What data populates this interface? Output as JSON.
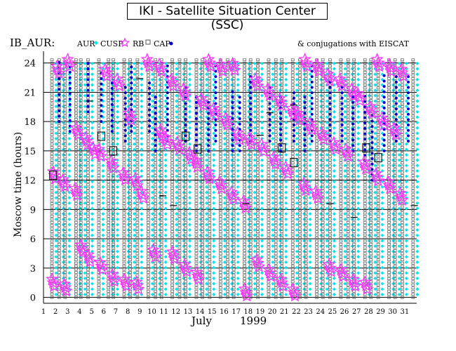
{
  "title": "IKI - Satellite Situation Center (SSC)",
  "chart_data": {
    "type": "scatter",
    "panel_label": "IB_AUR:",
    "legend": [
      {
        "label": "AUR",
        "marker": "diamond",
        "color": "#00e5ee"
      },
      {
        "label": "CUSP",
        "marker": "star",
        "color": "#ff33ff"
      },
      {
        "label": "RB",
        "marker": "square",
        "color": "#555555"
      },
      {
        "label": "CAP",
        "marker": "dot",
        "color": "#0000cc"
      }
    ],
    "conjugation_note": "& conjugations with EISCAT",
    "ylabel": "Moscow time (hours)",
    "xlabel": "July",
    "xlabel_year": "1999",
    "ylim": [
      -0.6,
      25.2
    ],
    "xlim": [
      1,
      32
    ],
    "y_ticks": [
      "0",
      "3",
      "6",
      "9",
      "12",
      "15",
      "18",
      "21",
      "24"
    ],
    "x_ticks": [
      "1",
      "2",
      "3",
      "4",
      "5",
      "6",
      "7",
      "8",
      "9",
      "10",
      "11",
      "12",
      "13",
      "14",
      "15",
      "16",
      "17",
      "18",
      "19",
      "20",
      "21",
      "22",
      "23",
      "24",
      "25",
      "26",
      "27",
      "28",
      "29",
      "30",
      "31"
    ],
    "grid": "horizontal lines at y tick values",
    "orbit_columns": [
      1.7,
      2.3,
      2.8,
      3.7,
      4.1,
      4.7,
      5.6,
      6.4,
      6.8,
      7.7,
      8.2,
      8.8,
      9.7,
      10.3,
      10.8,
      11.7,
      12.3,
      12.8,
      13.7,
      14.2,
      14.8,
      15.7,
      16.3,
      16.8,
      17.7,
      18.2,
      18.8,
      19.7,
      20.3,
      20.8,
      21.7,
      22.3,
      22.8,
      23.7,
      24.2,
      24.8,
      25.7,
      26.3,
      26.8,
      27.7,
      28.2,
      28.8,
      29.7,
      30.2,
      30.8,
      31.7
    ],
    "cusp_passes": [
      {
        "day": 1.8,
        "hour": 1.5
      },
      {
        "day": 1.9,
        "hour": 12.5
      },
      {
        "day": 2.2,
        "hour": 23.3
      },
      {
        "day": 2.7,
        "hour": 11.7
      },
      {
        "day": 2.8,
        "hour": 1.0
      },
      {
        "day": 3.1,
        "hour": 24.0
      },
      {
        "day": 3.7,
        "hour": 10.8
      },
      {
        "day": 3.8,
        "hour": 17.0
      },
      {
        "day": 4.2,
        "hour": 5.0
      },
      {
        "day": 4.6,
        "hour": 16.0
      },
      {
        "day": 4.8,
        "hour": 4.0
      },
      {
        "day": 5.2,
        "hour": 15.0
      },
      {
        "day": 5.7,
        "hour": 14.8
      },
      {
        "day": 5.8,
        "hour": 3.2
      },
      {
        "day": 6.2,
        "hour": 23.0
      },
      {
        "day": 6.7,
        "hour": 13.6
      },
      {
        "day": 6.8,
        "hour": 2.0
      },
      {
        "day": 7.2,
        "hour": 22.0
      },
      {
        "day": 7.7,
        "hour": 12.4
      },
      {
        "day": 7.8,
        "hour": 1.5
      },
      {
        "day": 8.2,
        "hour": 18.5
      },
      {
        "day": 8.7,
        "hour": 11.8
      },
      {
        "day": 8.8,
        "hour": 1.2
      },
      {
        "day": 9.2,
        "hour": 10.5
      },
      {
        "day": 9.7,
        "hour": 24.0
      },
      {
        "day": 10.2,
        "hour": 4.5
      },
      {
        "day": 10.7,
        "hour": 23.5
      },
      {
        "day": 10.8,
        "hour": 16.8
      },
      {
        "day": 11.2,
        "hour": 16.0
      },
      {
        "day": 11.7,
        "hour": 22.0
      },
      {
        "day": 11.8,
        "hour": 4.3
      },
      {
        "day": 12.2,
        "hour": 15.5
      },
      {
        "day": 12.7,
        "hour": 21.0
      },
      {
        "day": 12.8,
        "hour": 3.0
      },
      {
        "day": 13.2,
        "hour": 14.5
      },
      {
        "day": 13.7,
        "hour": 13.7
      },
      {
        "day": 13.8,
        "hour": 2.2
      },
      {
        "day": 14.2,
        "hour": 20.0
      },
      {
        "day": 14.7,
        "hour": 12.5
      },
      {
        "day": 14.8,
        "hour": 24.0
      },
      {
        "day": 15.2,
        "hour": 19.0
      },
      {
        "day": 15.7,
        "hour": 11.5
      },
      {
        "day": 15.8,
        "hour": 23.5
      },
      {
        "day": 16.2,
        "hour": 18.0
      },
      {
        "day": 16.7,
        "hour": 10.4
      },
      {
        "day": 16.8,
        "hour": 23.6
      },
      {
        "day": 17.2,
        "hour": 16.5
      },
      {
        "day": 17.7,
        "hour": 9.5
      },
      {
        "day": 17.8,
        "hour": 0.5
      },
      {
        "day": 18.2,
        "hour": 16.0
      },
      {
        "day": 18.7,
        "hour": 22.0
      },
      {
        "day": 18.8,
        "hour": 3.5
      },
      {
        "day": 19.2,
        "hour": 15.3
      },
      {
        "day": 19.7,
        "hour": 21.0
      },
      {
        "day": 19.8,
        "hour": 2.5
      },
      {
        "day": 20.2,
        "hour": 14.0
      },
      {
        "day": 20.7,
        "hour": 20.0
      },
      {
        "day": 20.8,
        "hour": 1.5
      },
      {
        "day": 21.2,
        "hour": 13.0
      },
      {
        "day": 21.7,
        "hour": 19.0
      },
      {
        "day": 21.8,
        "hour": 0.5
      },
      {
        "day": 22.2,
        "hour": 18.5
      },
      {
        "day": 22.7,
        "hour": 11.3
      },
      {
        "day": 22.8,
        "hour": 24.0
      },
      {
        "day": 23.2,
        "hour": 17.5
      },
      {
        "day": 23.7,
        "hour": 10.5
      },
      {
        "day": 23.8,
        "hour": 23.5
      },
      {
        "day": 24.2,
        "hour": 16.5
      },
      {
        "day": 24.7,
        "hour": 22.5
      },
      {
        "day": 24.8,
        "hour": 3.0
      },
      {
        "day": 25.2,
        "hour": 15.5
      },
      {
        "day": 25.7,
        "hour": 22.0
      },
      {
        "day": 25.8,
        "hour": 2.5
      },
      {
        "day": 26.2,
        "hour": 14.8
      },
      {
        "day": 26.7,
        "hour": 21.0
      },
      {
        "day": 26.8,
        "hour": 1.5
      },
      {
        "day": 27.2,
        "hour": 20.5
      },
      {
        "day": 27.7,
        "hour": 13.5
      },
      {
        "day": 27.8,
        "hour": 1.2
      },
      {
        "day": 28.2,
        "hour": 19.2
      },
      {
        "day": 28.7,
        "hour": 12.3
      },
      {
        "day": 28.8,
        "hour": 24.0
      },
      {
        "day": 29.2,
        "hour": 18.0
      },
      {
        "day": 29.7,
        "hour": 11.5
      },
      {
        "day": 29.8,
        "hour": 23.5
      },
      {
        "day": 30.2,
        "hour": 17.0
      },
      {
        "day": 30.7,
        "hour": 10.3
      },
      {
        "day": 30.8,
        "hour": 23.0
      }
    ],
    "cap_bands": [
      {
        "day": 2.3,
        "from": 18,
        "to": 24.5
      },
      {
        "day": 3.2,
        "from": 17,
        "to": 24
      },
      {
        "day": 4.7,
        "from": 19,
        "to": 24
      },
      {
        "day": 5.8,
        "from": 18,
        "to": 23
      },
      {
        "day": 6.7,
        "from": 17,
        "to": 22.5
      },
      {
        "day": 7.8,
        "from": 16,
        "to": 22
      },
      {
        "day": 8.3,
        "from": 17,
        "to": 24
      },
      {
        "day": 9.8,
        "from": 17,
        "to": 22
      },
      {
        "day": 10.3,
        "from": 15,
        "to": 21
      },
      {
        "day": 11.3,
        "from": 16,
        "to": 24
      },
      {
        "day": 12.8,
        "from": 16,
        "to": 22
      },
      {
        "day": 13.7,
        "from": 15,
        "to": 21
      },
      {
        "day": 14.7,
        "from": 15,
        "to": 20
      },
      {
        "day": 15.3,
        "from": 16,
        "to": 24
      },
      {
        "day": 16.7,
        "from": 15,
        "to": 21.5
      },
      {
        "day": 17.3,
        "from": 15,
        "to": 21
      },
      {
        "day": 18.2,
        "from": 16,
        "to": 23
      },
      {
        "day": 19.8,
        "from": 16,
        "to": 22
      },
      {
        "day": 20.7,
        "from": 15,
        "to": 21
      },
      {
        "day": 21.8,
        "from": 16,
        "to": 21
      },
      {
        "day": 22.7,
        "from": 15,
        "to": 21
      },
      {
        "day": 23.3,
        "from": 16,
        "to": 24
      },
      {
        "day": 24.8,
        "from": 16,
        "to": 22.5
      },
      {
        "day": 25.8,
        "from": 16,
        "to": 22
      },
      {
        "day": 26.7,
        "from": 15,
        "to": 21
      },
      {
        "day": 27.7,
        "from": 14,
        "to": 21
      },
      {
        "day": 28.3,
        "from": 12,
        "to": 19
      },
      {
        "day": 29.3,
        "from": 15,
        "to": 23
      },
      {
        "day": 30.3,
        "from": 16,
        "to": 23
      },
      {
        "day": 31.3,
        "from": 16,
        "to": 23
      }
    ],
    "eiscat_conjugations": [
      {
        "day": 1.8,
        "hour": 12.5
      },
      {
        "day": 5.8,
        "hour": 16.5
      },
      {
        "day": 6.8,
        "hour": 15.0
      },
      {
        "day": 12.8,
        "hour": 16.5
      },
      {
        "day": 13.8,
        "hour": 15.2
      },
      {
        "day": 20.8,
        "hour": 15.3
      },
      {
        "day": 21.8,
        "hour": 13.8
      },
      {
        "day": 27.8,
        "hour": 15.3
      },
      {
        "day": 28.8,
        "hour": 14.3
      }
    ],
    "black_ticks": [
      {
        "day": 4.8,
        "hour": 20.1
      },
      {
        "day": 9.0,
        "hour": 22.4
      },
      {
        "day": 10.9,
        "hour": 10.4
      },
      {
        "day": 11.8,
        "hour": 9.4
      },
      {
        "day": 17.8,
        "hour": 9.6
      },
      {
        "day": 19.0,
        "hour": 16.6
      },
      {
        "day": 19.8,
        "hour": 18.9
      },
      {
        "day": 21.8,
        "hour": 19.7
      },
      {
        "day": 24.8,
        "hour": 9.6
      },
      {
        "day": 26.8,
        "hour": 8.2
      },
      {
        "day": 31.8,
        "hour": 9.4
      }
    ]
  }
}
